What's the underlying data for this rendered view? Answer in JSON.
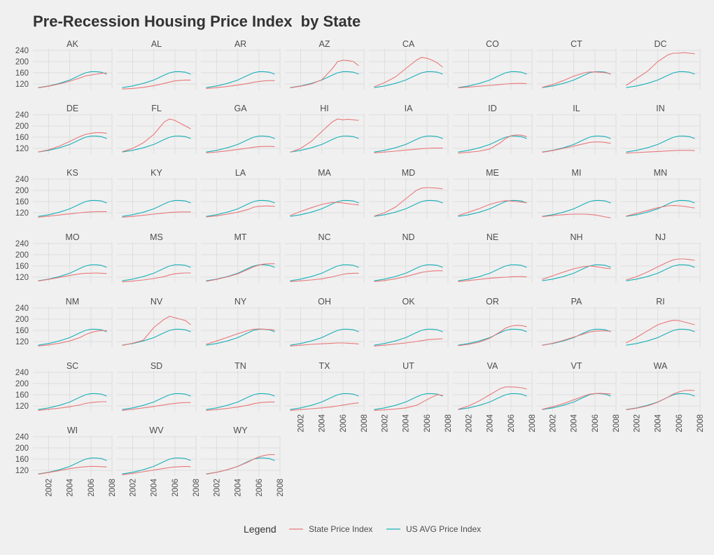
{
  "chart_data": {
    "type": "line",
    "title": "Pre-Recession Housing Price Index  by State",
    "xlabel": "",
    "ylabel": "",
    "x_ticks": [
      "2002",
      "2004",
      "2006",
      "2008"
    ],
    "y_ticks": [
      "120",
      "160",
      "200",
      "240"
    ],
    "xlim": [
      2000.5,
      2008.0
    ],
    "ylim": [
      100,
      245
    ],
    "grid": true,
    "legend": {
      "title": "Legend",
      "position": "bottom",
      "entries": [
        {
          "name": "State Price Index",
          "color": "#e8787a"
        },
        {
          "name": "US AVG Price Index",
          "color": "#1ab0b8"
        }
      ]
    },
    "x": [
      2001.0,
      2002.0,
      2003.0,
      2004.0,
      2005.0,
      2005.5,
      2006.0,
      2006.5,
      2007.0,
      2007.5
    ],
    "us_avg": [
      107,
      113,
      122,
      134,
      152,
      160,
      164,
      164,
      162,
      155
    ],
    "panels": [
      {
        "state": "AK",
        "values": [
          106,
          112,
          120,
          130,
          142,
          149,
          152,
          155,
          158,
          160
        ]
      },
      {
        "state": "AL",
        "values": [
          102,
          104,
          108,
          114,
          122,
          127,
          131,
          133,
          134,
          134
        ]
      },
      {
        "state": "AR",
        "values": [
          104,
          107,
          111,
          116,
          122,
          126,
          129,
          131,
          132,
          132
        ]
      },
      {
        "state": "AZ",
        "values": [
          106,
          112,
          120,
          135,
          175,
          200,
          205,
          204,
          200,
          185
        ]
      },
      {
        "state": "CA",
        "values": [
          110,
          125,
          145,
          175,
          205,
          215,
          212,
          205,
          195,
          180
        ]
      },
      {
        "state": "CO",
        "values": [
          106,
          109,
          112,
          115,
          118,
          120,
          121,
          122,
          122,
          121
        ]
      },
      {
        "state": "CT",
        "values": [
          108,
          118,
          132,
          148,
          160,
          163,
          163,
          162,
          160,
          156
        ]
      },
      {
        "state": "DC",
        "values": [
          115,
          140,
          165,
          200,
          225,
          230,
          230,
          232,
          230,
          228
        ]
      },
      {
        "state": "DE",
        "values": [
          107,
          115,
          128,
          145,
          163,
          170,
          174,
          176,
          176,
          174
        ]
      },
      {
        "state": "FL",
        "values": [
          108,
          120,
          140,
          170,
          215,
          225,
          220,
          210,
          200,
          190
        ]
      },
      {
        "state": "GA",
        "values": [
          104,
          107,
          111,
          116,
          121,
          124,
          126,
          127,
          127,
          126
        ]
      },
      {
        "state": "HI",
        "values": [
          106,
          120,
          145,
          180,
          215,
          225,
          222,
          224,
          222,
          220
        ]
      },
      {
        "state": "IA",
        "values": [
          104,
          107,
          110,
          114,
          117,
          119,
          120,
          121,
          121,
          121
        ]
      },
      {
        "state": "ID",
        "values": [
          103,
          106,
          110,
          118,
          140,
          155,
          165,
          168,
          167,
          162
        ]
      },
      {
        "state": "IL",
        "values": [
          106,
          112,
          120,
          128,
          137,
          141,
          143,
          143,
          141,
          138
        ]
      },
      {
        "state": "IN",
        "values": [
          103,
          105,
          107,
          109,
          111,
          112,
          113,
          113,
          113,
          112
        ]
      },
      {
        "state": "KS",
        "values": [
          104,
          108,
          112,
          116,
          120,
          122,
          123,
          124,
          124,
          124
        ]
      },
      {
        "state": "KY",
        "values": [
          104,
          107,
          111,
          115,
          119,
          121,
          122,
          123,
          123,
          123
        ]
      },
      {
        "state": "LA",
        "values": [
          105,
          109,
          115,
          122,
          132,
          140,
          143,
          144,
          144,
          143
        ]
      },
      {
        "state": "MA",
        "values": [
          110,
          125,
          138,
          150,
          157,
          157,
          155,
          152,
          150,
          148
        ]
      },
      {
        "state": "MD",
        "values": [
          108,
          120,
          140,
          170,
          200,
          208,
          210,
          209,
          208,
          205
        ]
      },
      {
        "state": "ME",
        "values": [
          110,
          122,
          135,
          150,
          160,
          163,
          162,
          160,
          158,
          156
        ]
      },
      {
        "state": "MI",
        "values": [
          106,
          110,
          113,
          115,
          115,
          114,
          112,
          109,
          105,
          102
        ]
      },
      {
        "state": "MN",
        "values": [
          108,
          118,
          128,
          138,
          145,
          146,
          145,
          143,
          140,
          137
        ]
      },
      {
        "state": "MO",
        "values": [
          106,
          112,
          119,
          126,
          132,
          134,
          134,
          135,
          134,
          133
        ]
      },
      {
        "state": "MS",
        "values": [
          103,
          106,
          110,
          115,
          122,
          128,
          132,
          134,
          135,
          135
        ]
      },
      {
        "state": "MT",
        "values": [
          105,
          112,
          121,
          132,
          148,
          157,
          163,
          167,
          168,
          168
        ]
      },
      {
        "state": "NC",
        "values": [
          104,
          107,
          110,
          114,
          121,
          126,
          130,
          133,
          134,
          134
        ]
      },
      {
        "state": "ND",
        "values": [
          104,
          108,
          114,
          122,
          132,
          137,
          140,
          142,
          143,
          143
        ]
      },
      {
        "state": "NE",
        "values": [
          104,
          108,
          112,
          116,
          119,
          120,
          121,
          122,
          122,
          121
        ]
      },
      {
        "state": "NH",
        "values": [
          112,
          125,
          138,
          150,
          158,
          160,
          158,
          155,
          152,
          150
        ]
      },
      {
        "state": "NJ",
        "values": [
          110,
          122,
          138,
          157,
          175,
          182,
          185,
          185,
          183,
          180
        ]
      },
      {
        "state": "NM",
        "values": [
          104,
          108,
          114,
          122,
          135,
          145,
          152,
          157,
          159,
          159
        ]
      },
      {
        "state": "NV",
        "values": [
          106,
          114,
          125,
          170,
          200,
          210,
          205,
          200,
          195,
          180
        ]
      },
      {
        "state": "NY",
        "values": [
          110,
          122,
          135,
          148,
          160,
          164,
          165,
          164,
          163,
          161
        ]
      },
      {
        "state": "OH",
        "values": [
          104,
          107,
          110,
          112,
          114,
          115,
          115,
          114,
          113,
          111
        ]
      },
      {
        "state": "OK",
        "values": [
          104,
          107,
          111,
          115,
          120,
          123,
          126,
          128,
          129,
          130
        ]
      },
      {
        "state": "OR",
        "values": [
          105,
          110,
          118,
          132,
          155,
          168,
          175,
          178,
          177,
          173
        ]
      },
      {
        "state": "PA",
        "values": [
          106,
          114,
          124,
          136,
          148,
          154,
          157,
          158,
          158,
          157
        ]
      },
      {
        "state": "RI",
        "values": [
          115,
          135,
          158,
          180,
          192,
          196,
          195,
          190,
          185,
          180
        ]
      },
      {
        "state": "SC",
        "values": [
          104,
          108,
          112,
          117,
          124,
          129,
          132,
          134,
          135,
          135
        ]
      },
      {
        "state": "SD",
        "values": [
          104,
          108,
          113,
          118,
          124,
          127,
          129,
          131,
          132,
          132
        ]
      },
      {
        "state": "TN",
        "values": [
          104,
          107,
          111,
          116,
          123,
          128,
          131,
          133,
          134,
          134
        ]
      },
      {
        "state": "TX",
        "values": [
          104,
          107,
          110,
          113,
          117,
          120,
          123,
          126,
          129,
          131
        ]
      },
      {
        "state": "UT",
        "values": [
          104,
          106,
          109,
          113,
          122,
          132,
          142,
          152,
          160,
          158
        ]
      },
      {
        "state": "VA",
        "values": [
          108,
          120,
          138,
          160,
          182,
          188,
          188,
          187,
          185,
          180
        ]
      },
      {
        "state": "VT",
        "values": [
          108,
          117,
          128,
          142,
          156,
          162,
          164,
          165,
          164,
          163
        ]
      },
      {
        "state": "WA",
        "values": [
          106,
          112,
          120,
          133,
          152,
          163,
          170,
          175,
          176,
          175
        ]
      },
      {
        "state": "WI",
        "values": [
          106,
          112,
          119,
          126,
          131,
          133,
          134,
          134,
          133,
          132
        ]
      },
      {
        "state": "WV",
        "values": [
          104,
          109,
          115,
          121,
          127,
          130,
          132,
          133,
          134,
          133
        ]
      },
      {
        "state": "WY",
        "values": [
          106,
          113,
          122,
          134,
          150,
          160,
          168,
          173,
          176,
          176
        ]
      }
    ]
  }
}
